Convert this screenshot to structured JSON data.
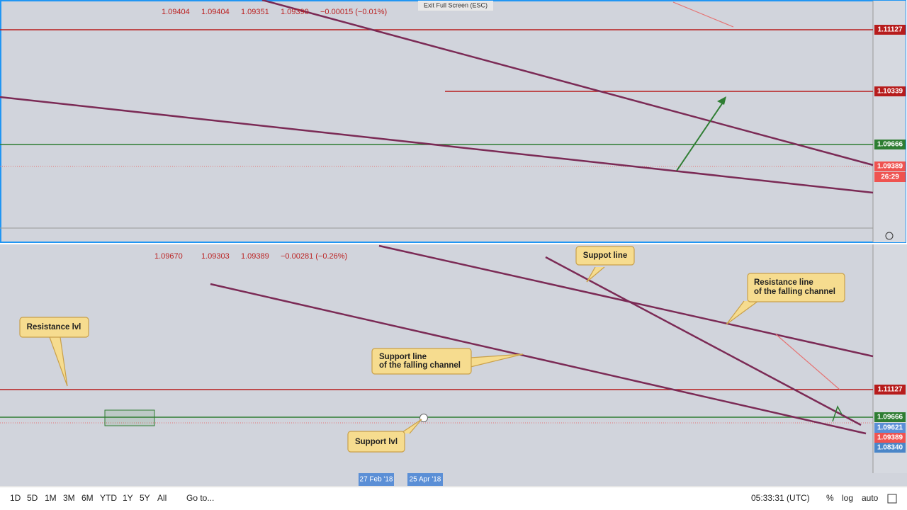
{
  "top_pane": {
    "legend": [
      "1.09404",
      "1.09404",
      "1.09351",
      "1.09390",
      "−0.00015 (−0.01%)"
    ],
    "exit_button": "Exit Full Screen (ESC)",
    "price_tags": [
      "1.11127",
      "1.10339",
      "1.09666",
      "1.09389",
      "26:29"
    ]
  },
  "bottom_pane": {
    "legend": [
      "1.09670",
      "1.09303",
      "1.09389",
      "−0.00281 (−0.26%)"
    ],
    "price_tags": [
      "1.11127",
      "1.09666",
      "1.09621",
      "1.09389",
      "1.08340"
    ],
    "date_tags": [
      "27 Feb '18",
      "25 Apr '18"
    ],
    "callouts": {
      "suppot_line": "Suppot line",
      "resistance_channel": [
        "Resistance line",
        "of the falling channel"
      ],
      "resistance_lvl": "Resistance lvl",
      "support_channel": [
        "Support line",
        "of the falling channel"
      ],
      "support_lvl": "Support lvl"
    }
  },
  "toolbar": {
    "ranges": [
      "1D",
      "5D",
      "1M",
      "3M",
      "6M",
      "YTD",
      "1Y",
      "5Y",
      "All"
    ],
    "goto": "Go to...",
    "clock": "05:33:31 (UTC)",
    "options": [
      "%",
      "log",
      "auto"
    ]
  }
}
